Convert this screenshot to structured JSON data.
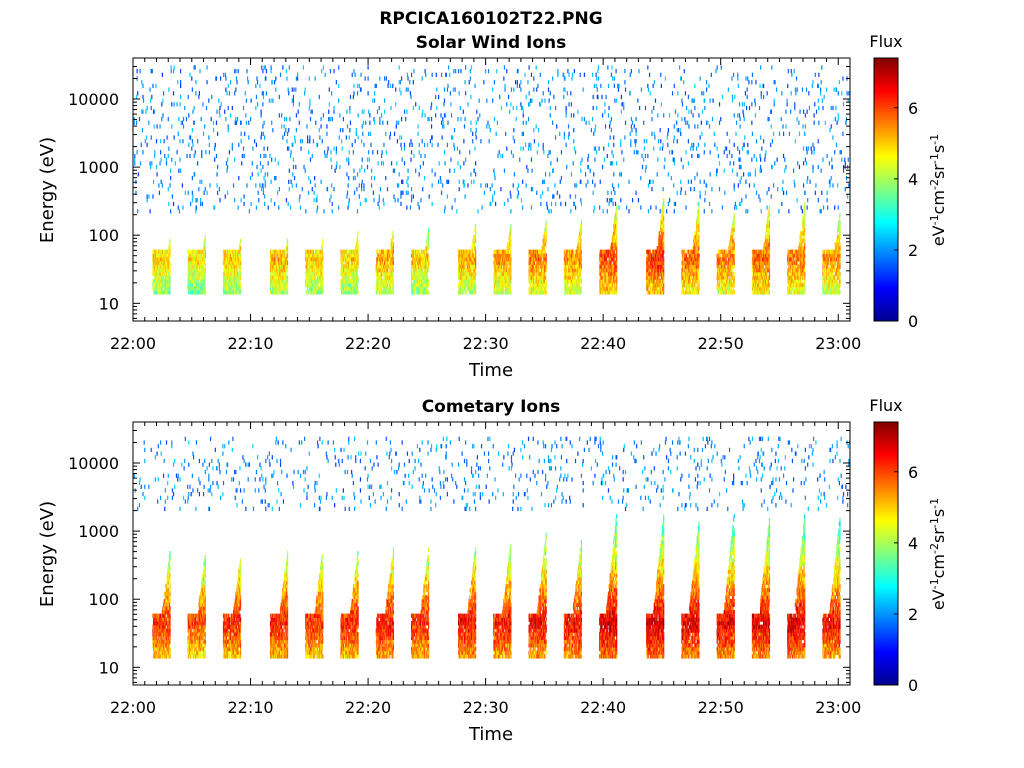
{
  "figure_title": "RPCICA160102T22.PNG",
  "chart_data": [
    {
      "type": "heatmap",
      "title": "Solar Wind Ions",
      "xlabel": "Time",
      "ylabel": "Energy (eV)",
      "x_scale": "time",
      "x_range": [
        "22:00",
        "23:01"
      ],
      "x_ticks": [
        "22:00",
        "22:10",
        "22:20",
        "22:30",
        "22:40",
        "22:50",
        "23:00"
      ],
      "y_scale": "log",
      "y_range": [
        5.5,
        40000
      ],
      "y_ticks": [
        10,
        100,
        1000,
        10000
      ],
      "y_tick_labels": [
        "10",
        "100",
        "1000",
        "10000"
      ],
      "colorbar": {
        "label": "Flux",
        "units_label": "eV-1cm-2sr-1s-1",
        "colormap": "jet",
        "range": [
          0,
          7.4
        ],
        "ticks": [
          0,
          2,
          4,
          6
        ],
        "tick_labels": [
          "0",
          "2",
          "4",
          "6"
        ]
      },
      "sweep_period_min": 3.2,
      "sweep_start_times": [
        "22:02",
        "22:05",
        "22:08",
        "22:12",
        "22:15",
        "22:18",
        "22:21",
        "22:24",
        "22:28",
        "22:31",
        "22:34",
        "22:37",
        "22:40",
        "22:44",
        "22:47",
        "22:50",
        "22:53",
        "22:56",
        "22:59"
      ],
      "peak_energy_eV": 45,
      "peak_flux": [
        5.0,
        4.8,
        5.0,
        5.2,
        5.0,
        5.0,
        5.3,
        5.0,
        5.3,
        5.4,
        5.6,
        5.5,
        6.0,
        6.2,
        5.8,
        5.6,
        5.8,
        5.6,
        5.4
      ],
      "upper_energy_eV": [
        90,
        100,
        90,
        90,
        90,
        110,
        130,
        130,
        150,
        150,
        170,
        170,
        280,
        350,
        300,
        220,
        280,
        300,
        220
      ],
      "background_level": 1.3,
      "background_energy_range": [
        200,
        30000
      ]
    },
    {
      "type": "heatmap",
      "title": "Cometary Ions",
      "xlabel": "Time",
      "ylabel": "Energy (eV)",
      "x_scale": "time",
      "x_range": [
        "22:00",
        "23:01"
      ],
      "x_ticks": [
        "22:00",
        "22:10",
        "22:20",
        "22:30",
        "22:40",
        "22:50",
        "23:00"
      ],
      "y_scale": "log",
      "y_range": [
        5.5,
        40000
      ],
      "y_ticks": [
        10,
        100,
        1000,
        10000
      ],
      "y_tick_labels": [
        "10",
        "100",
        "1000",
        "10000"
      ],
      "colorbar": {
        "label": "Flux",
        "units_label": "eV-1cm-2sr-1s-1",
        "colormap": "jet",
        "range": [
          0,
          7.4
        ],
        "ticks": [
          0,
          2,
          4,
          6
        ],
        "tick_labels": [
          "0",
          "2",
          "4",
          "6"
        ]
      },
      "sweep_period_min": 3.2,
      "sweep_start_times": [
        "22:02",
        "22:05",
        "22:08",
        "22:12",
        "22:15",
        "22:18",
        "22:21",
        "22:24",
        "22:28",
        "22:31",
        "22:34",
        "22:37",
        "22:40",
        "22:44",
        "22:47",
        "22:50",
        "22:53",
        "22:56",
        "22:59"
      ],
      "peak_energy_eV": 45,
      "peak_flux": [
        6.2,
        6.0,
        6.3,
        6.3,
        6.2,
        6.3,
        6.4,
        6.3,
        6.5,
        6.4,
        6.5,
        6.5,
        6.8,
        6.8,
        6.7,
        6.6,
        6.7,
        6.7,
        6.5
      ],
      "upper_energy_eV": [
        500,
        450,
        400,
        500,
        550,
        500,
        550,
        550,
        600,
        700,
        900,
        700,
        1800,
        1700,
        1400,
        1800,
        1500,
        1700,
        1600
      ],
      "background_level": 1.3,
      "background_energy_range": [
        2000,
        25000
      ]
    }
  ]
}
